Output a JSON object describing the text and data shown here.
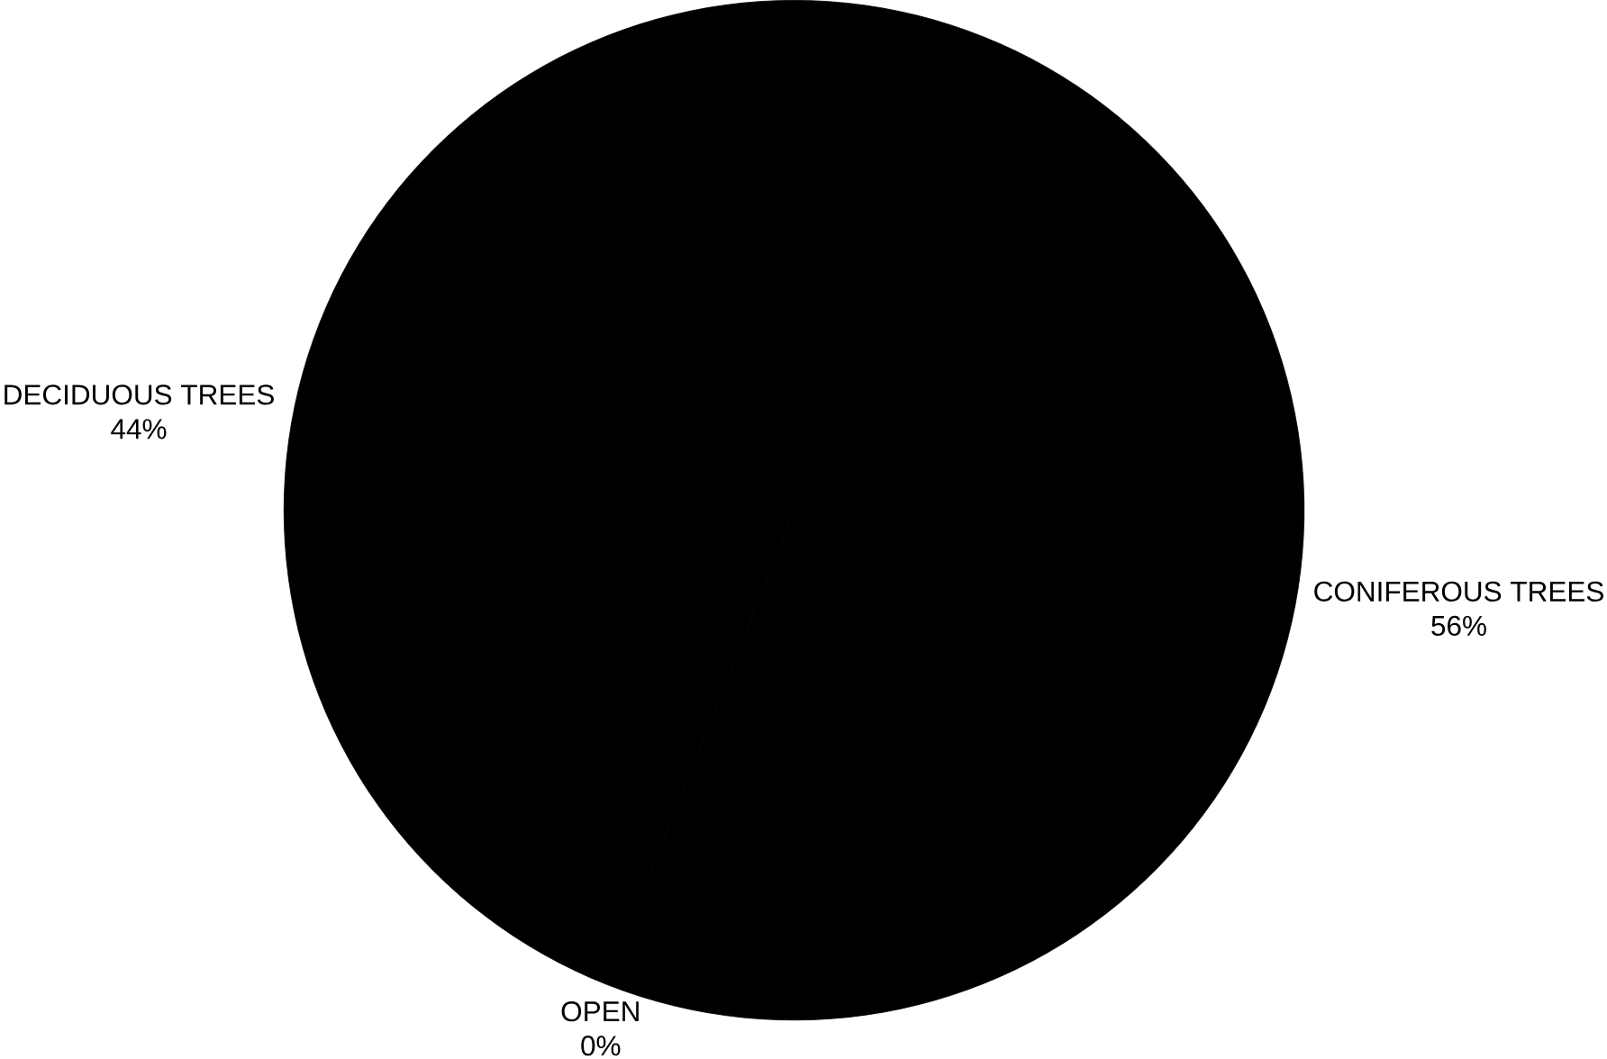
{
  "chart_data": {
    "type": "pie",
    "categories": [
      "CONIFEROUS TREES",
      "OPEN",
      "DECIDUOUS TREES"
    ],
    "values": [
      56,
      0,
      44
    ],
    "colors": [
      "#000000",
      "#000000",
      "#000000"
    ],
    "value_labels": [
      "56%",
      "0%",
      "44%"
    ]
  }
}
